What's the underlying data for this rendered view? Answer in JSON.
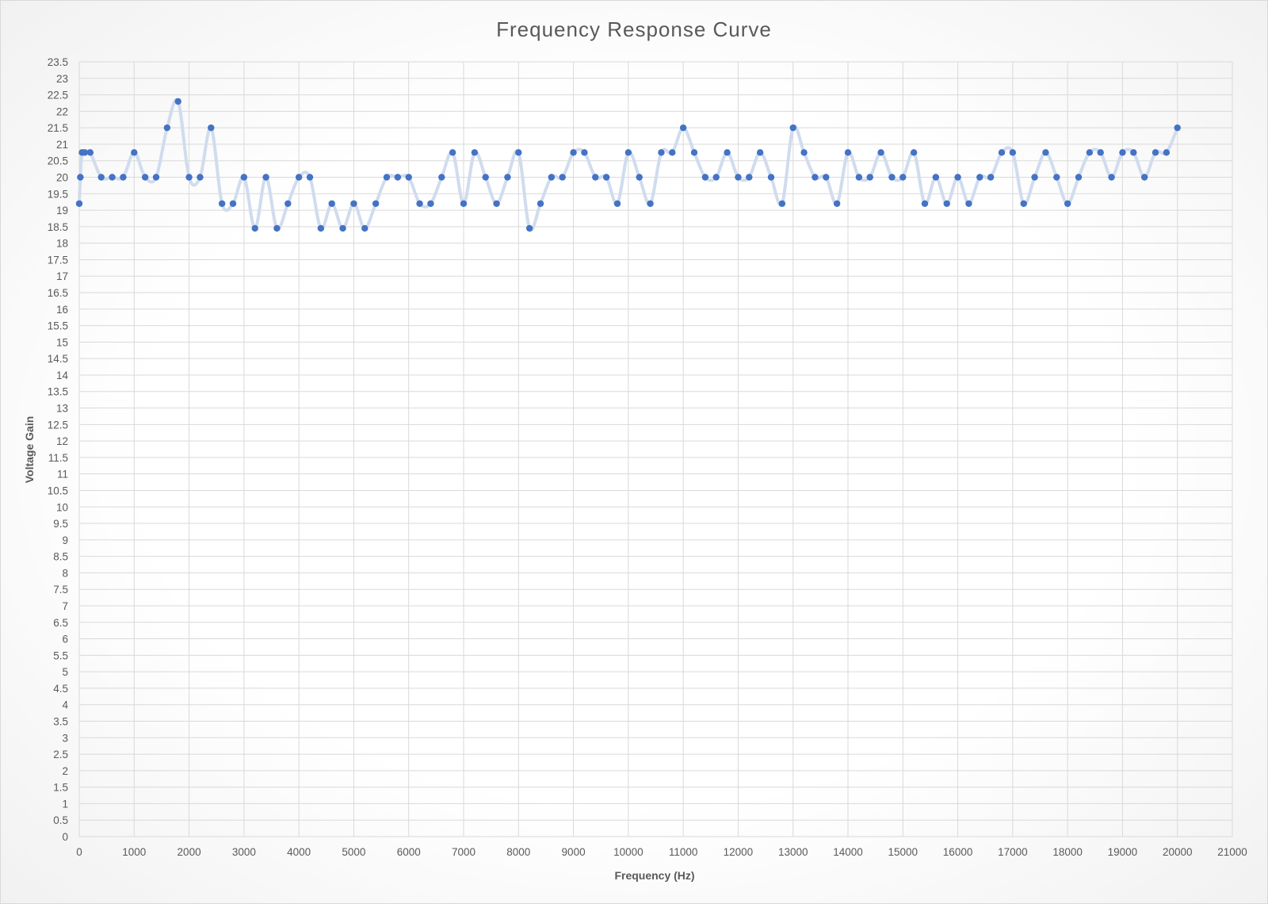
{
  "chart_data": {
    "type": "scatter",
    "title": "Frequency Response Curve",
    "xlabel": "Frequency (Hz)",
    "ylabel": "Voltage Gain",
    "xlim": [
      0,
      21000
    ],
    "ylim": [
      0,
      23.5
    ],
    "x_tick_step": 1000,
    "y_tick_step": 0.5,
    "grid": true,
    "legend": "none",
    "colors": {
      "marker": "#4472C4",
      "line": "#D0DCEE",
      "grid": "#D9D9D9",
      "text": "#595959"
    },
    "series": [
      {
        "x": [
          0,
          20,
          50,
          100,
          200,
          400,
          600,
          800,
          1000,
          1200,
          1400,
          1600,
          1800,
          2000,
          2200,
          2400,
          2600,
          2800,
          3000,
          3200,
          3400,
          3600,
          3800,
          4000,
          4200,
          4400,
          4600,
          4800,
          5000,
          5200,
          5400,
          5600,
          5800,
          6000,
          6200,
          6400,
          6600,
          6800,
          7000,
          7200,
          7400,
          7600,
          7800,
          8000,
          8200,
          8400,
          8600,
          8800,
          9000,
          9200,
          9400,
          9600,
          9800,
          10000,
          10200,
          10400,
          10600,
          10800,
          11000,
          11200,
          11400,
          11600,
          11800,
          12000,
          12200,
          12400,
          12600,
          12800,
          13000,
          13200,
          13400,
          13600,
          13800,
          14000,
          14200,
          14400,
          14600,
          14800,
          15000,
          15200,
          15400,
          15600,
          15800,
          16000,
          16200,
          16400,
          16600,
          16800,
          17000,
          17200,
          17400,
          17600,
          17800,
          18000,
          18200,
          18400,
          18600,
          18800,
          19000,
          19200,
          19400,
          19600,
          19800,
          20000
        ],
        "y": [
          19.2,
          20,
          20.75,
          20.75,
          20.75,
          20,
          20,
          20,
          20.75,
          20,
          20,
          21.5,
          22.3,
          20,
          20,
          21.5,
          19.2,
          19.2,
          20,
          18.45,
          20,
          18.45,
          19.2,
          20,
          20,
          18.45,
          19.2,
          18.45,
          19.2,
          18.45,
          19.2,
          20,
          20,
          20,
          19.2,
          19.2,
          20,
          20.75,
          19.2,
          20.75,
          20,
          19.2,
          20,
          20.75,
          18.45,
          19.2,
          20,
          20,
          20.75,
          20.75,
          20,
          20,
          19.2,
          20.75,
          20,
          19.2,
          20.75,
          20.75,
          21.5,
          20.75,
          20,
          20,
          20.75,
          20,
          20,
          20.75,
          20,
          19.2,
          21.5,
          20.75,
          20,
          20,
          19.2,
          20.75,
          20,
          20,
          20.75,
          20,
          20,
          20.75,
          19.2,
          20,
          19.2,
          20,
          19.2,
          20,
          20,
          20.75,
          20.75,
          19.2,
          20,
          20.75,
          20,
          19.2,
          20,
          20.75,
          20.75,
          20,
          20.75,
          20.75,
          20,
          20.75,
          20.75,
          21.5
        ]
      }
    ]
  }
}
